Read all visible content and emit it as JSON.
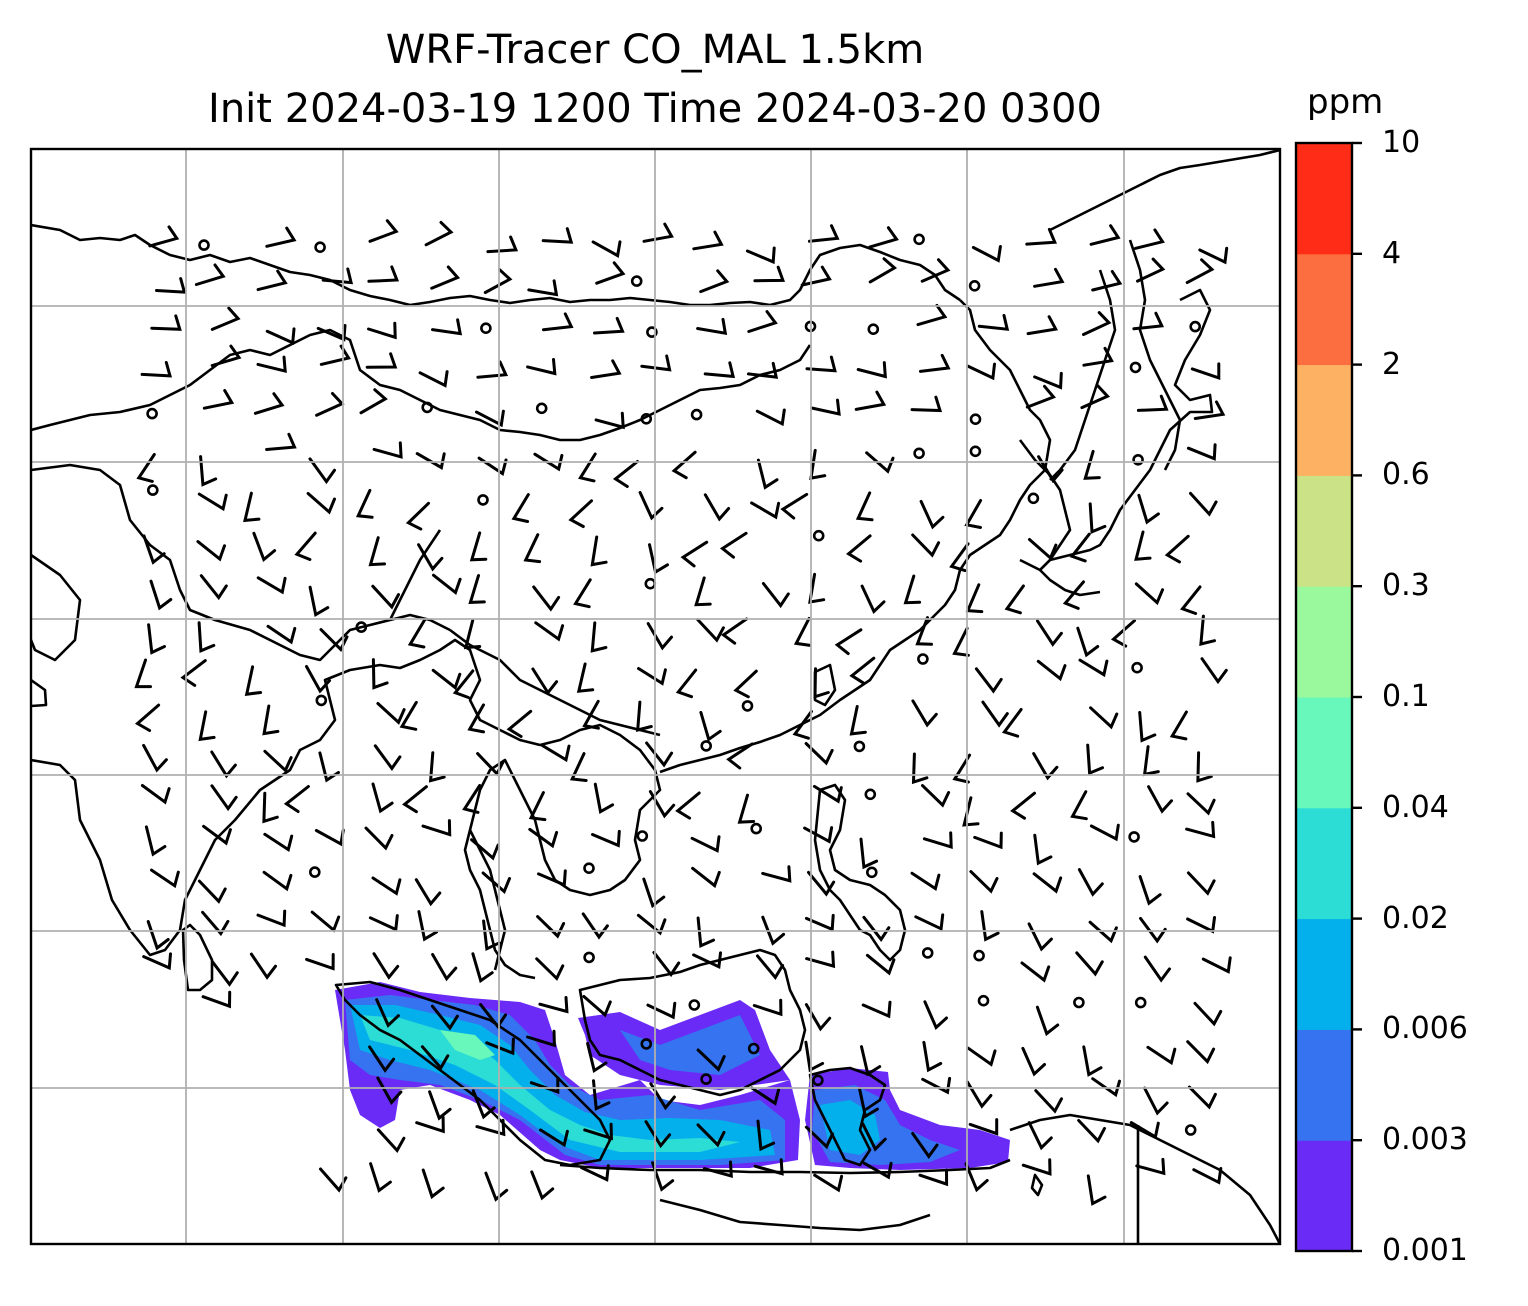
{
  "title": {
    "line1": "WRF-Tracer CO_MAL 1.5km",
    "line2": "Init 2024-03-19 1200 Time 2024-03-20 0300"
  },
  "colorbar": {
    "unit": "ppm",
    "tick_labels": [
      "0.001",
      "0.003",
      "0.006",
      "0.02",
      "0.04",
      "0.1",
      "0.3",
      "0.6",
      "2",
      "4",
      "10"
    ],
    "colors": [
      "#6a2bf7",
      "#3573f0",
      "#03b0ec",
      "#2cddd6",
      "#68f8bb",
      "#9bf99d",
      "#cbe286",
      "#fdb263",
      "#fc6e3f",
      "#ff2c17"
    ]
  },
  "map": {
    "gridlines": true,
    "tracer_field": "CO_MAL",
    "wind_barbs": true
  }
}
